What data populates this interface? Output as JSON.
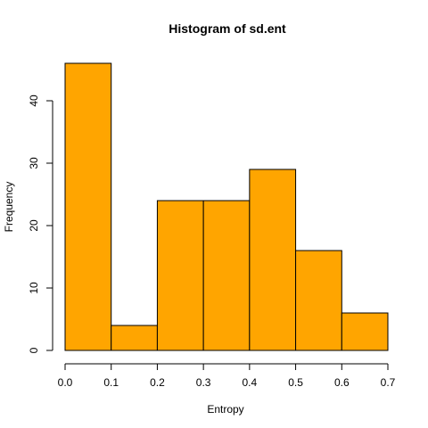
{
  "chart_data": {
    "type": "bar",
    "title": "Histogram of sd.ent",
    "xlabel": "Entropy",
    "ylabel": "Frequency",
    "bins": [
      {
        "x0": 0.0,
        "x1": 0.1,
        "count": 46
      },
      {
        "x0": 0.1,
        "x1": 0.2,
        "count": 4
      },
      {
        "x0": 0.2,
        "x1": 0.3,
        "count": 24
      },
      {
        "x0": 0.3,
        "x1": 0.4,
        "count": 24
      },
      {
        "x0": 0.4,
        "x1": 0.5,
        "count": 29
      },
      {
        "x0": 0.5,
        "x1": 0.6,
        "count": 16
      },
      {
        "x0": 0.6,
        "x1": 0.7,
        "count": 6
      }
    ],
    "xlim": [
      0.0,
      0.7
    ],
    "ylim": [
      0,
      46
    ],
    "x_ticks": [
      0.0,
      0.1,
      0.2,
      0.3,
      0.4,
      0.5,
      0.6,
      0.7
    ],
    "x_tick_labels": [
      "0.0",
      "0.1",
      "0.2",
      "0.3",
      "0.4",
      "0.5",
      "0.6",
      "0.7"
    ],
    "y_ticks": [
      0,
      10,
      20,
      30,
      40
    ],
    "y_tick_labels": [
      "0",
      "10",
      "20",
      "30",
      "40"
    ],
    "bar_color": "#FFA500",
    "grid": false
  }
}
